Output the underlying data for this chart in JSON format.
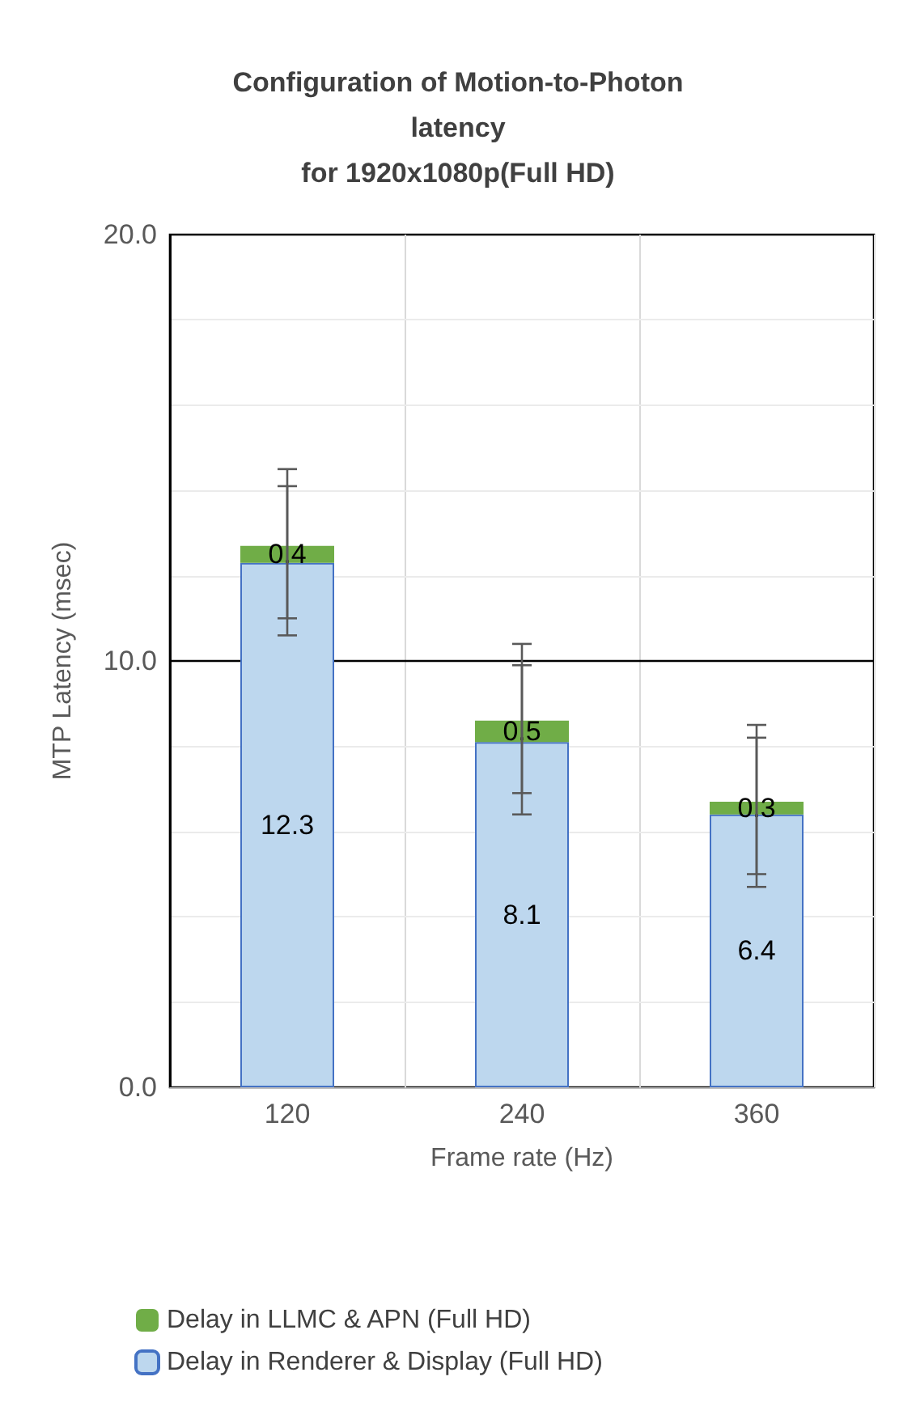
{
  "chart_data": {
    "type": "bar",
    "title": "Configuration of Motion-to-Photon\nlatency\nfor 1920x1080p(Full HD)",
    "xlabel": "Frame rate (Hz)",
    "ylabel": "MTP Latency (msec)",
    "categories": [
      "120",
      "240",
      "360"
    ],
    "stacked": true,
    "data_labels": true,
    "ylim": [
      0,
      20
    ],
    "yticks": [
      {
        "value": 0,
        "label": "0.0"
      },
      {
        "value": 2,
        "label": null
      },
      {
        "value": 4,
        "label": null
      },
      {
        "value": 6,
        "label": null
      },
      {
        "value": 8,
        "label": null
      },
      {
        "value": 10,
        "label": "10.0"
      },
      {
        "value": 12,
        "label": null
      },
      {
        "value": 14,
        "label": null
      },
      {
        "value": 16,
        "label": null
      },
      {
        "value": 18,
        "label": null
      },
      {
        "value": 20,
        "label": "20.0"
      }
    ],
    "grid": true,
    "legend": "bottom",
    "ref_lines": [
      {
        "axis": "y",
        "value": 10,
        "color": "#000000"
      }
    ],
    "series": [
      {
        "name": "Delay in Renderer & Display (Full HD)",
        "color": "#bdd7ee",
        "values": [
          12.3,
          8.1,
          6.4
        ],
        "errors": [
          [
            11.0,
            14.1
          ],
          [
            6.9,
            9.9
          ],
          [
            5.0,
            8.2
          ]
        ]
      },
      {
        "name": "Delay in LLMC & APN (Full HD)",
        "color": "#70ad47",
        "values": [
          0.4,
          0.5,
          0.3
        ],
        "errors": [
          [
            10.6,
            14.5
          ],
          [
            6.4,
            10.4
          ],
          [
            4.7,
            8.5
          ]
        ]
      }
    ]
  }
}
